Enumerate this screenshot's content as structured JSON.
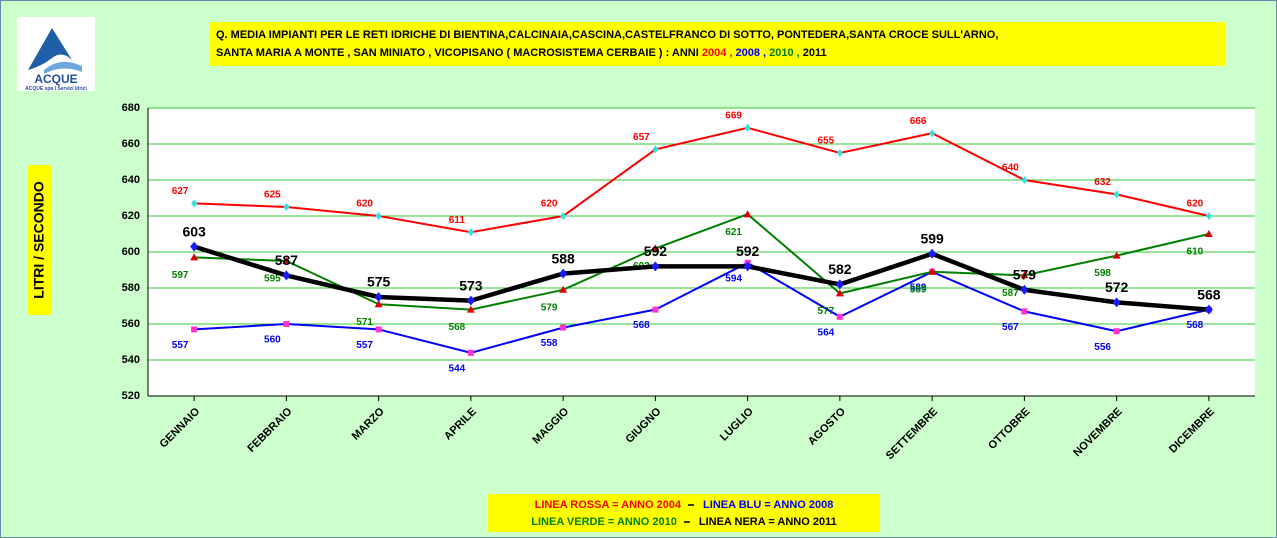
{
  "logo": {
    "name": "ACQUE",
    "tagline": "ACQUE spa I Servizi Idrici"
  },
  "chart_data": {
    "type": "line",
    "title_line1": "Q. MEDIA IMPIANTI PER LE RETI IDRICHE DI  BIENTINA,CALCINAIA,CASCINA,CASTELFRANCO  DI SOTTO, PONTEDERA,SANTA CROCE SULL'ARNO,",
    "title_line2": "SANTA MARIA A MONTE , SAN MINIATO , VICOPISANO ( MACROSISTEMA CERBAIE ) : ANNI ",
    "title_years": [
      "2004  ,",
      " 2008 ,",
      " 2010 ,",
      " 2011"
    ],
    "y_label": "LITRI  /  SECONDO",
    "categories": [
      "GENNAIO",
      "FEBBRAIO",
      "MARZO",
      "APRILE",
      "MAGGIO",
      "GIUGNO",
      "LUGLIO",
      "AGOSTO",
      "SETTEMBRE",
      "OTTOBRE",
      "NOVEMBRE",
      "DICEMBRE"
    ],
    "series": [
      {
        "name": "LINEA ROSSA  = ANNO 2004",
        "color": "#ff0000",
        "marker_color": "#33e0e0",
        "values": [
          627,
          625,
          620,
          611,
          620,
          657,
          669,
          655,
          666,
          640,
          632,
          620
        ]
      },
      {
        "name": "LINEA BLU  = ANNO 2008",
        "color": "#0000ff",
        "marker_color": "#ff33cc",
        "values": [
          557,
          560,
          557,
          544,
          558,
          568,
          594,
          564,
          589,
          567,
          556,
          568
        ]
      },
      {
        "name": "LINEA VERDE  = ANNO 2010",
        "color": "#008000",
        "marker_color": "#e00000",
        "values": [
          597,
          595,
          571,
          568,
          579,
          602,
          621,
          577,
          589,
          587,
          598,
          610
        ]
      },
      {
        "name": "LINEA NERA =  ANNO 2011",
        "color": "#000000",
        "marker_color": "#1a1aff",
        "values": [
          603,
          587,
          575,
          573,
          588,
          592,
          592,
          582,
          599,
          579,
          572,
          568
        ]
      }
    ],
    "ylim": [
      520,
      680
    ],
    "yticks": [
      520,
      540,
      560,
      580,
      600,
      620,
      640,
      660,
      680
    ],
    "grid": true
  }
}
